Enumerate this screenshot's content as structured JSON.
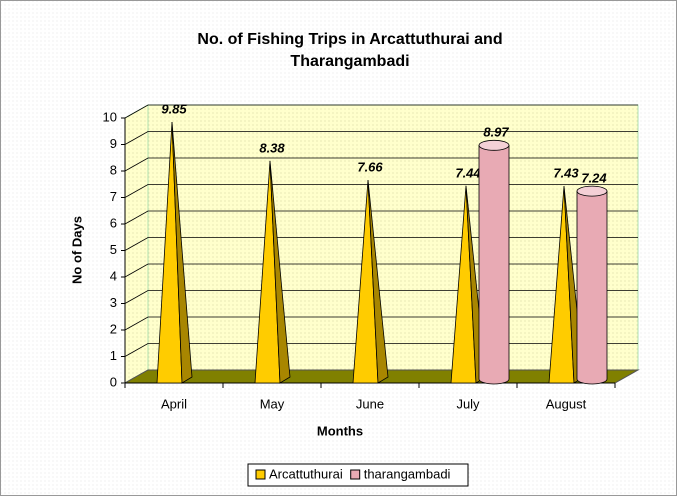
{
  "chart_data": {
    "type": "bar3d",
    "title": [
      "No. of Fishing Trips in Arcattuthurai and",
      "Tharangambadi"
    ],
    "xlabel": "Months",
    "ylabel": "No of Days",
    "categories": [
      "April",
      "May",
      "June",
      "July",
      "August"
    ],
    "series": [
      {
        "name": "Arcattuthurai",
        "shape": "pyramid",
        "color": "#ffcc00",
        "values": [
          9.85,
          8.38,
          7.66,
          7.44,
          7.43
        ]
      },
      {
        "name": "tharangambadi",
        "shape": "cylinder",
        "color": "#e8aab4",
        "values": [
          null,
          null,
          null,
          8.97,
          7.24
        ]
      }
    ],
    "ylim": [
      0,
      10
    ],
    "yticks": [
      0,
      1,
      2,
      3,
      4,
      5,
      6,
      7,
      8,
      9,
      10
    ],
    "grid": true,
    "legend": "bottom"
  }
}
